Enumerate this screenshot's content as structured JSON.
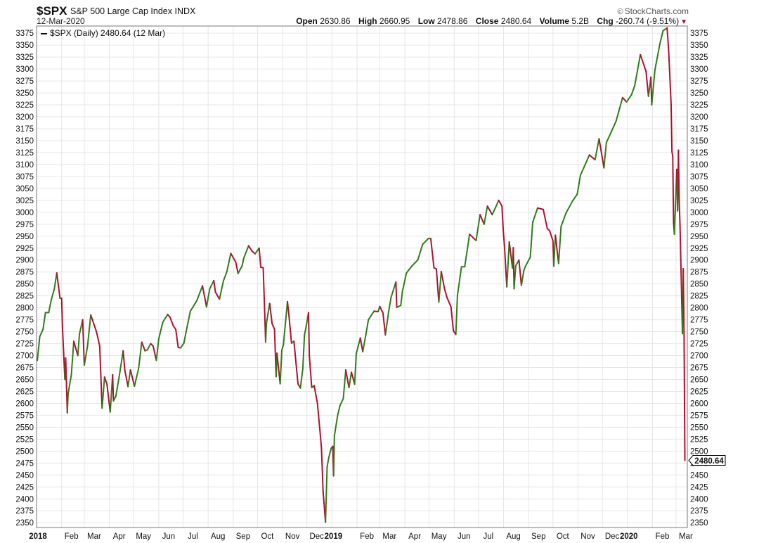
{
  "header": {
    "ticker": "$SPX",
    "index_name": "S&P 500 Large Cap Index",
    "exchange": "INDX",
    "date": "12-Mar-2020",
    "logo_text": "StockCharts.com",
    "open_label": "Open",
    "open_value": "2630.86",
    "high_label": "High",
    "high_value": "2660.95",
    "low_label": "Low",
    "low_value": "2478.86",
    "close_label": "Close",
    "close_value": "2480.64",
    "volume_label": "Volume",
    "volume_value": "5.2B",
    "chg_label": "Chg",
    "chg_value": "-260.74 (-9.51%)"
  },
  "legend": {
    "text": "$SPX (Daily) 2480.64 (12 Mar)"
  },
  "colors": {
    "up": "#2e7d1a",
    "down": "#b01030",
    "grid": "#e6e6e6",
    "frame": "#777777"
  },
  "chart_data": {
    "type": "line",
    "title": "$SPX S&P 500 Large Cap Index INDX",
    "series": [
      {
        "name": "$SPX (Daily)",
        "points": [
          [
            "2018-01-02",
            2690
          ],
          [
            "2018-01-05",
            2740
          ],
          [
            "2018-01-09",
            2755
          ],
          [
            "2018-01-12",
            2790
          ],
          [
            "2018-01-16",
            2790
          ],
          [
            "2018-01-19",
            2815
          ],
          [
            "2018-01-23",
            2840
          ],
          [
            "2018-01-26",
            2873
          ],
          [
            "2018-01-30",
            2820
          ],
          [
            "2018-02-01",
            2820
          ],
          [
            "2018-02-02",
            2760
          ],
          [
            "2018-02-05",
            2650
          ],
          [
            "2018-02-06",
            2695
          ],
          [
            "2018-02-08",
            2580
          ],
          [
            "2018-02-09",
            2620
          ],
          [
            "2018-02-13",
            2660
          ],
          [
            "2018-02-16",
            2730
          ],
          [
            "2018-02-21",
            2700
          ],
          [
            "2018-02-23",
            2745
          ],
          [
            "2018-02-27",
            2775
          ],
          [
            "2018-03-01",
            2680
          ],
          [
            "2018-03-05",
            2720
          ],
          [
            "2018-03-09",
            2785
          ],
          [
            "2018-03-13",
            2765
          ],
          [
            "2018-03-16",
            2750
          ],
          [
            "2018-03-20",
            2720
          ],
          [
            "2018-03-23",
            2590
          ],
          [
            "2018-03-26",
            2655
          ],
          [
            "2018-03-29",
            2640
          ],
          [
            "2018-04-02",
            2582
          ],
          [
            "2018-04-05",
            2660
          ],
          [
            "2018-04-06",
            2605
          ],
          [
            "2018-04-09",
            2615
          ],
          [
            "2018-04-13",
            2655
          ],
          [
            "2018-04-18",
            2710
          ],
          [
            "2018-04-20",
            2670
          ],
          [
            "2018-04-24",
            2635
          ],
          [
            "2018-04-27",
            2670
          ],
          [
            "2018-05-02",
            2636
          ],
          [
            "2018-05-07",
            2672
          ],
          [
            "2018-05-11",
            2728
          ],
          [
            "2018-05-15",
            2710
          ],
          [
            "2018-05-18",
            2712
          ],
          [
            "2018-05-22",
            2725
          ],
          [
            "2018-05-25",
            2720
          ],
          [
            "2018-05-29",
            2690
          ],
          [
            "2018-06-01",
            2735
          ],
          [
            "2018-06-06",
            2770
          ],
          [
            "2018-06-12",
            2786
          ],
          [
            "2018-06-15",
            2780
          ],
          [
            "2018-06-19",
            2762
          ],
          [
            "2018-06-22",
            2755
          ],
          [
            "2018-06-25",
            2717
          ],
          [
            "2018-06-28",
            2716
          ],
          [
            "2018-07-02",
            2726
          ],
          [
            "2018-07-06",
            2760
          ],
          [
            "2018-07-10",
            2793
          ],
          [
            "2018-07-13",
            2801
          ],
          [
            "2018-07-18",
            2815
          ],
          [
            "2018-07-25",
            2846
          ],
          [
            "2018-07-30",
            2802
          ],
          [
            "2018-08-03",
            2840
          ],
          [
            "2018-08-08",
            2857
          ],
          [
            "2018-08-10",
            2833
          ],
          [
            "2018-08-15",
            2818
          ],
          [
            "2018-08-20",
            2857
          ],
          [
            "2018-08-24",
            2875
          ],
          [
            "2018-08-29",
            2914
          ],
          [
            "2018-09-04",
            2896
          ],
          [
            "2018-09-07",
            2872
          ],
          [
            "2018-09-12",
            2888
          ],
          [
            "2018-09-14",
            2904
          ],
          [
            "2018-09-20",
            2930
          ],
          [
            "2018-09-24",
            2919
          ],
          [
            "2018-09-28",
            2913
          ],
          [
            "2018-10-03",
            2925
          ],
          [
            "2018-10-05",
            2885
          ],
          [
            "2018-10-08",
            2884
          ],
          [
            "2018-10-10",
            2785
          ],
          [
            "2018-10-11",
            2728
          ],
          [
            "2018-10-12",
            2767
          ],
          [
            "2018-10-16",
            2809
          ],
          [
            "2018-10-19",
            2767
          ],
          [
            "2018-10-22",
            2755
          ],
          [
            "2018-10-24",
            2656
          ],
          [
            "2018-10-25",
            2705
          ],
          [
            "2018-10-29",
            2641
          ],
          [
            "2018-10-31",
            2711
          ],
          [
            "2018-11-02",
            2723
          ],
          [
            "2018-11-07",
            2813
          ],
          [
            "2018-11-09",
            2781
          ],
          [
            "2018-11-12",
            2726
          ],
          [
            "2018-11-15",
            2730
          ],
          [
            "2018-11-20",
            2641
          ],
          [
            "2018-11-23",
            2632
          ],
          [
            "2018-11-26",
            2673
          ],
          [
            "2018-11-28",
            2743
          ],
          [
            "2018-11-30",
            2760
          ],
          [
            "2018-12-03",
            2790
          ],
          [
            "2018-12-04",
            2700
          ],
          [
            "2018-12-07",
            2633
          ],
          [
            "2018-12-10",
            2637
          ],
          [
            "2018-12-14",
            2600
          ],
          [
            "2018-12-17",
            2545
          ],
          [
            "2018-12-19",
            2506
          ],
          [
            "2018-12-21",
            2416
          ],
          [
            "2018-12-24",
            2351
          ],
          [
            "2018-12-26",
            2467
          ],
          [
            "2018-12-28",
            2486
          ],
          [
            "2018-12-31",
            2506
          ],
          [
            "2019-01-02",
            2510
          ],
          [
            "2019-01-03",
            2448
          ],
          [
            "2019-01-04",
            2532
          ],
          [
            "2019-01-08",
            2575
          ],
          [
            "2019-01-11",
            2596
          ],
          [
            "2019-01-15",
            2610
          ],
          [
            "2019-01-18",
            2670
          ],
          [
            "2019-01-22",
            2633
          ],
          [
            "2019-01-25",
            2665
          ],
          [
            "2019-01-29",
            2640
          ],
          [
            "2019-01-31",
            2704
          ],
          [
            "2019-02-05",
            2737
          ],
          [
            "2019-02-08",
            2708
          ],
          [
            "2019-02-12",
            2745
          ],
          [
            "2019-02-15",
            2775
          ],
          [
            "2019-02-22",
            2793
          ],
          [
            "2019-02-27",
            2792
          ],
          [
            "2019-03-01",
            2803
          ],
          [
            "2019-03-05",
            2789
          ],
          [
            "2019-03-08",
            2743
          ],
          [
            "2019-03-12",
            2792
          ],
          [
            "2019-03-15",
            2822
          ],
          [
            "2019-03-21",
            2854
          ],
          [
            "2019-03-22",
            2801
          ],
          [
            "2019-03-27",
            2805
          ],
          [
            "2019-03-29",
            2834
          ],
          [
            "2019-04-03",
            2873
          ],
          [
            "2019-04-10",
            2888
          ],
          [
            "2019-04-17",
            2900
          ],
          [
            "2019-04-23",
            2933
          ],
          [
            "2019-04-30",
            2945
          ],
          [
            "2019-05-03",
            2945
          ],
          [
            "2019-05-07",
            2884
          ],
          [
            "2019-05-10",
            2881
          ],
          [
            "2019-05-13",
            2812
          ],
          [
            "2019-05-16",
            2876
          ],
          [
            "2019-05-20",
            2840
          ],
          [
            "2019-05-23",
            2822
          ],
          [
            "2019-05-28",
            2802
          ],
          [
            "2019-05-31",
            2752
          ],
          [
            "2019-06-03",
            2744
          ],
          [
            "2019-06-05",
            2826
          ],
          [
            "2019-06-10",
            2886
          ],
          [
            "2019-06-14",
            2886
          ],
          [
            "2019-06-20",
            2954
          ],
          [
            "2019-06-28",
            2941
          ],
          [
            "2019-07-03",
            2995
          ],
          [
            "2019-07-08",
            2975
          ],
          [
            "2019-07-12",
            3013
          ],
          [
            "2019-07-18",
            2995
          ],
          [
            "2019-07-26",
            3025
          ],
          [
            "2019-07-30",
            3013
          ],
          [
            "2019-07-31",
            2980
          ],
          [
            "2019-08-01",
            2953
          ],
          [
            "2019-08-02",
            2932
          ],
          [
            "2019-08-05",
            2844
          ],
          [
            "2019-08-08",
            2938
          ],
          [
            "2019-08-12",
            2883
          ],
          [
            "2019-08-13",
            2926
          ],
          [
            "2019-08-14",
            2840
          ],
          [
            "2019-08-16",
            2888
          ],
          [
            "2019-08-20",
            2900
          ],
          [
            "2019-08-23",
            2847
          ],
          [
            "2019-08-26",
            2878
          ],
          [
            "2019-08-28",
            2887
          ],
          [
            "2019-09-03",
            2906
          ],
          [
            "2019-09-06",
            2979
          ],
          [
            "2019-09-12",
            3009
          ],
          [
            "2019-09-19",
            3006
          ],
          [
            "2019-09-24",
            2966
          ],
          [
            "2019-09-27",
            2961
          ],
          [
            "2019-10-01",
            2940
          ],
          [
            "2019-10-02",
            2887
          ],
          [
            "2019-10-04",
            2952
          ],
          [
            "2019-10-08",
            2893
          ],
          [
            "2019-10-11",
            2970
          ],
          [
            "2019-10-17",
            2998
          ],
          [
            "2019-10-25",
            3023
          ],
          [
            "2019-10-31",
            3038
          ],
          [
            "2019-11-04",
            3078
          ],
          [
            "2019-11-08",
            3093
          ],
          [
            "2019-11-15",
            3120
          ],
          [
            "2019-11-22",
            3110
          ],
          [
            "2019-11-27",
            3154
          ],
          [
            "2019-12-03",
            3093
          ],
          [
            "2019-12-06",
            3146
          ],
          [
            "2019-12-12",
            3168
          ],
          [
            "2019-12-18",
            3191
          ],
          [
            "2019-12-26",
            3240
          ],
          [
            "2019-12-31",
            3231
          ],
          [
            "2020-01-06",
            3246
          ],
          [
            "2020-01-10",
            3265
          ],
          [
            "2020-01-17",
            3330
          ],
          [
            "2020-01-24",
            3295
          ],
          [
            "2020-01-27",
            3243
          ],
          [
            "2020-01-30",
            3283
          ],
          [
            "2020-01-31",
            3225
          ],
          [
            "2020-02-04",
            3298
          ],
          [
            "2020-02-10",
            3352
          ],
          [
            "2020-02-14",
            3380
          ],
          [
            "2020-02-19",
            3386
          ],
          [
            "2020-02-21",
            3337
          ],
          [
            "2020-02-24",
            3225
          ],
          [
            "2020-02-25",
            3128
          ],
          [
            "2020-02-26",
            3116
          ],
          [
            "2020-02-27",
            2979
          ],
          [
            "2020-02-28",
            2954
          ],
          [
            "2020-03-02",
            3090
          ],
          [
            "2020-03-03",
            3003
          ],
          [
            "2020-03-04",
            3130
          ],
          [
            "2020-03-05",
            3023
          ],
          [
            "2020-03-06",
            2972
          ],
          [
            "2020-03-09",
            2746
          ],
          [
            "2020-03-10",
            2882
          ],
          [
            "2020-03-11",
            2741
          ],
          [
            "2020-03-12",
            2480.64
          ]
        ]
      }
    ],
    "y_ticks": [
      2350,
      2375,
      2400,
      2425,
      2450,
      2475,
      2500,
      2525,
      2550,
      2575,
      2600,
      2625,
      2650,
      2675,
      2700,
      2725,
      2750,
      2775,
      2800,
      2825,
      2850,
      2875,
      2900,
      2925,
      2950,
      2975,
      3000,
      3025,
      3050,
      3075,
      3100,
      3125,
      3150,
      3175,
      3200,
      3225,
      3250,
      3275,
      3300,
      3325,
      3350,
      3375
    ],
    "x_ticks": [
      {
        "label": "2018",
        "date": "2018-01-01",
        "year": true
      },
      {
        "label": "Feb",
        "date": "2018-02-01"
      },
      {
        "label": "Mar",
        "date": "2018-03-01"
      },
      {
        "label": "Apr",
        "date": "2018-04-01"
      },
      {
        "label": "May",
        "date": "2018-05-01"
      },
      {
        "label": "Jun",
        "date": "2018-06-01"
      },
      {
        "label": "Jul",
        "date": "2018-07-01"
      },
      {
        "label": "Aug",
        "date": "2018-08-01"
      },
      {
        "label": "Sep",
        "date": "2018-09-01"
      },
      {
        "label": "Oct",
        "date": "2018-10-01"
      },
      {
        "label": "Nov",
        "date": "2018-11-01"
      },
      {
        "label": "Dec",
        "date": "2018-12-01"
      },
      {
        "label": "2019",
        "date": "2019-01-01",
        "year": true
      },
      {
        "label": "Feb",
        "date": "2019-02-01"
      },
      {
        "label": "Mar",
        "date": "2019-03-01"
      },
      {
        "label": "Apr",
        "date": "2019-04-01"
      },
      {
        "label": "May",
        "date": "2019-05-01"
      },
      {
        "label": "Jun",
        "date": "2019-06-01"
      },
      {
        "label": "Jul",
        "date": "2019-07-01"
      },
      {
        "label": "Aug",
        "date": "2019-08-01"
      },
      {
        "label": "Sep",
        "date": "2019-09-01"
      },
      {
        "label": "Oct",
        "date": "2019-10-01"
      },
      {
        "label": "Nov",
        "date": "2019-11-01"
      },
      {
        "label": "Dec",
        "date": "2019-12-01"
      },
      {
        "label": "2020",
        "date": "2020-01-01",
        "year": true
      },
      {
        "label": "Feb",
        "date": "2020-02-01"
      },
      {
        "label": "Mar",
        "date": "2020-03-01"
      }
    ],
    "ylim": [
      2340,
      3390
    ],
    "xlim": [
      "2018-01-01",
      "2020-03-15"
    ],
    "grid": true,
    "y_axis_sides": "both",
    "last_value_label": "2480.64"
  }
}
